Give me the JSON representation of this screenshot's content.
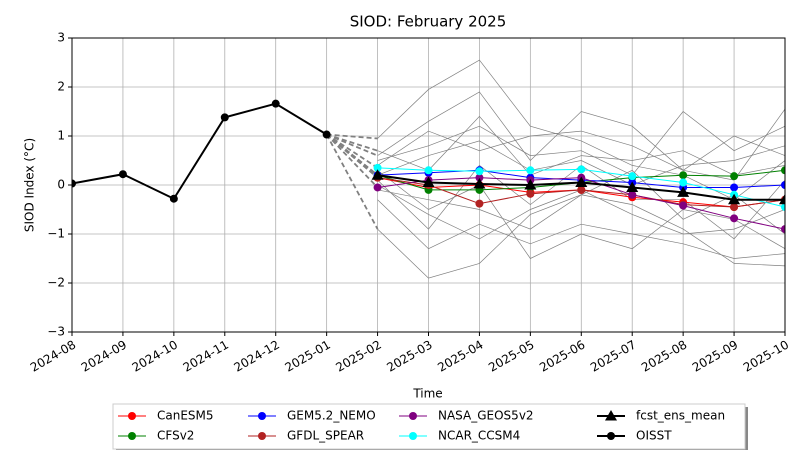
{
  "chart_data": {
    "type": "line",
    "title": "SIOD: February 2025",
    "x_label": "Time",
    "y_label": "SIOD Index (°C)",
    "x": [
      "2024-08",
      "2024-09",
      "2024-10",
      "2024-11",
      "2024-12",
      "2025-01",
      "2025-02",
      "2025-03",
      "2025-04",
      "2025-05",
      "2025-06",
      "2025-07",
      "2025-08",
      "2025-09",
      "2025-10"
    ],
    "ylim": [
      -3,
      3
    ],
    "yticks": [
      {
        "value": -3,
        "label": "−3"
      },
      {
        "value": -2,
        "label": "−2"
      },
      {
        "value": -1,
        "label": "−1"
      },
      0,
      1,
      2,
      3
    ],
    "grid": true,
    "legend": "lower center",
    "member_color": "#808080",
    "members": [
      [
        null,
        null,
        null,
        null,
        null,
        null,
        0.95,
        1.95,
        2.55,
        1.2,
        0.9,
        0.4,
        0.2,
        -0.3,
        0.5
      ],
      [
        null,
        null,
        null,
        null,
        null,
        null,
        0.6,
        1.3,
        1.9,
        0.5,
        1.5,
        1.2,
        0.3,
        0.1,
        1.55
      ],
      [
        null,
        null,
        null,
        null,
        null,
        null,
        -0.9,
        -1.9,
        -1.6,
        -0.6,
        -0.2,
        -0.4,
        -0.9,
        -1.6,
        -1.65
      ],
      [
        null,
        null,
        null,
        null,
        null,
        null,
        0.3,
        -0.5,
        0.0,
        -1.5,
        -1.0,
        -1.3,
        -0.5,
        -0.7,
        -1.3
      ],
      [
        null,
        null,
        null,
        null,
        null,
        null,
        0.5,
        0.8,
        1.2,
        0.6,
        0.7,
        0.2,
        1.5,
        0.7,
        1.2
      ],
      [
        null,
        null,
        null,
        null,
        null,
        null,
        -0.3,
        -1.3,
        -0.8,
        -1.2,
        -0.8,
        -1.0,
        -1.2,
        -1.5,
        -1.4
      ],
      [
        null,
        null,
        null,
        null,
        null,
        null,
        0.2,
        0.6,
        0.9,
        0.3,
        0.5,
        0.0,
        0.4,
        0.5,
        0.8
      ],
      [
        null,
        null,
        null,
        null,
        null,
        null,
        0.0,
        -0.6,
        -1.1,
        -0.5,
        -0.1,
        -0.6,
        -1.0,
        -0.9,
        -0.5
      ],
      [
        null,
        null,
        null,
        null,
        null,
        null,
        0.4,
        1.1,
        0.7,
        1.0,
        1.1,
        0.8,
        0.3,
        1.0,
        0.6
      ],
      [
        null,
        null,
        null,
        null,
        null,
        null,
        -0.1,
        -0.3,
        -0.5,
        -0.9,
        -0.2,
        0.3,
        -0.7,
        -0.2,
        -1.0
      ],
      [
        null,
        null,
        null,
        null,
        null,
        null,
        0.7,
        0.3,
        1.4,
        0.2,
        0.6,
        0.5,
        0.7,
        0.2,
        0.4
      ],
      [
        null,
        null,
        null,
        null,
        null,
        null,
        0.1,
        -0.9,
        0.4,
        -0.4,
        0.4,
        -0.3,
        -0.3,
        -1.1,
        0.1
      ]
    ],
    "series": [
      {
        "name": "CanESM5",
        "color": "#ff0000",
        "marker": "circle",
        "values": [
          null,
          null,
          null,
          null,
          null,
          null,
          0.15,
          -0.05,
          0.0,
          -0.15,
          -0.1,
          -0.25,
          -0.35,
          -0.45,
          -0.3
        ]
      },
      {
        "name": "CFSv2",
        "color": "#008000",
        "marker": "circle",
        "values": [
          null,
          null,
          null,
          null,
          null,
          null,
          0.2,
          -0.1,
          -0.1,
          -0.05,
          0.05,
          0.15,
          0.2,
          0.18,
          0.3
        ]
      },
      {
        "name": "GEM5.2_NEMO",
        "color": "#0000ff",
        "marker": "circle",
        "values": [
          null,
          null,
          null,
          null,
          null,
          null,
          0.2,
          0.25,
          0.3,
          0.15,
          0.1,
          0.05,
          -0.05,
          -0.05,
          0.0
        ]
      },
      {
        "name": "GFDL_SPEAR",
        "color": "#b22222",
        "marker": "circle",
        "values": [
          null,
          null,
          null,
          null,
          null,
          null,
          0.15,
          0.0,
          -0.38,
          -0.18,
          -0.1,
          -0.2,
          -0.4,
          -0.45,
          -0.3
        ]
      },
      {
        "name": "NASA_GEOS5v2",
        "color": "#800080",
        "marker": "circle",
        "values": [
          null,
          null,
          null,
          null,
          null,
          null,
          -0.05,
          0.1,
          0.15,
          0.1,
          0.15,
          -0.2,
          -0.42,
          -0.68,
          -0.9
        ]
      },
      {
        "name": "NCAR_CCSM4",
        "color": "#00ffff",
        "marker": "circle",
        "values": [
          null,
          null,
          null,
          null,
          null,
          null,
          0.35,
          0.3,
          0.28,
          0.3,
          0.32,
          0.18,
          0.05,
          -0.2,
          -0.45
        ]
      },
      {
        "name": "fcst_ens_mean",
        "color": "#000000",
        "marker": "triangle",
        "values": [
          null,
          null,
          null,
          null,
          null,
          null,
          0.2,
          0.05,
          0.02,
          0.0,
          0.05,
          -0.05,
          -0.15,
          -0.3,
          -0.3
        ]
      },
      {
        "name": "OISST",
        "color": "#000000",
        "marker": "circle",
        "values": [
          0.03,
          0.22,
          -0.28,
          1.38,
          1.66,
          1.03,
          null,
          null,
          null,
          null,
          null,
          null,
          null,
          null,
          null
        ]
      }
    ]
  }
}
